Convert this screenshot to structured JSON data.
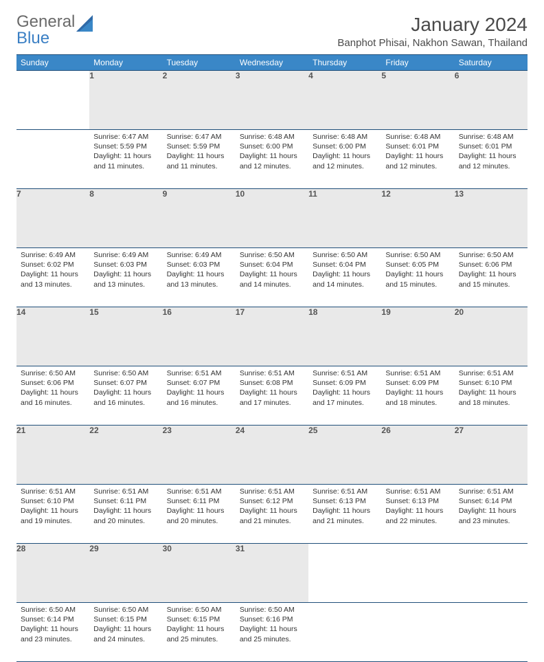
{
  "brand": {
    "name1": "General",
    "name2": "Blue"
  },
  "title": "January 2024",
  "location": "Banphot Phisai, Nakhon Sawan, Thailand",
  "colors": {
    "header_bg": "#3a87c7",
    "header_text": "#ffffff",
    "border": "#1f4e79",
    "daynum_bg": "#e9e9e9",
    "text": "#333333",
    "logo_gray": "#6a6a6a",
    "logo_blue": "#3a7fc4"
  },
  "typography": {
    "title_fontsize": 28,
    "location_fontsize": 15,
    "header_fontsize": 12,
    "daynum_fontsize": 12,
    "body_fontsize": 10.5
  },
  "days_of_week": [
    "Sunday",
    "Monday",
    "Tuesday",
    "Wednesday",
    "Thursday",
    "Friday",
    "Saturday"
  ],
  "weeks": [
    {
      "nums": [
        "",
        "1",
        "2",
        "3",
        "4",
        "5",
        "6"
      ],
      "cells": [
        null,
        {
          "sunrise": "Sunrise: 6:47 AM",
          "sunset": "Sunset: 5:59 PM",
          "daylight": "Daylight: 11 hours and 11 minutes."
        },
        {
          "sunrise": "Sunrise: 6:47 AM",
          "sunset": "Sunset: 5:59 PM",
          "daylight": "Daylight: 11 hours and 11 minutes."
        },
        {
          "sunrise": "Sunrise: 6:48 AM",
          "sunset": "Sunset: 6:00 PM",
          "daylight": "Daylight: 11 hours and 12 minutes."
        },
        {
          "sunrise": "Sunrise: 6:48 AM",
          "sunset": "Sunset: 6:00 PM",
          "daylight": "Daylight: 11 hours and 12 minutes."
        },
        {
          "sunrise": "Sunrise: 6:48 AM",
          "sunset": "Sunset: 6:01 PM",
          "daylight": "Daylight: 11 hours and 12 minutes."
        },
        {
          "sunrise": "Sunrise: 6:48 AM",
          "sunset": "Sunset: 6:01 PM",
          "daylight": "Daylight: 11 hours and 12 minutes."
        }
      ]
    },
    {
      "nums": [
        "7",
        "8",
        "9",
        "10",
        "11",
        "12",
        "13"
      ],
      "cells": [
        {
          "sunrise": "Sunrise: 6:49 AM",
          "sunset": "Sunset: 6:02 PM",
          "daylight": "Daylight: 11 hours and 13 minutes."
        },
        {
          "sunrise": "Sunrise: 6:49 AM",
          "sunset": "Sunset: 6:03 PM",
          "daylight": "Daylight: 11 hours and 13 minutes."
        },
        {
          "sunrise": "Sunrise: 6:49 AM",
          "sunset": "Sunset: 6:03 PM",
          "daylight": "Daylight: 11 hours and 13 minutes."
        },
        {
          "sunrise": "Sunrise: 6:50 AM",
          "sunset": "Sunset: 6:04 PM",
          "daylight": "Daylight: 11 hours and 14 minutes."
        },
        {
          "sunrise": "Sunrise: 6:50 AM",
          "sunset": "Sunset: 6:04 PM",
          "daylight": "Daylight: 11 hours and 14 minutes."
        },
        {
          "sunrise": "Sunrise: 6:50 AM",
          "sunset": "Sunset: 6:05 PM",
          "daylight": "Daylight: 11 hours and 15 minutes."
        },
        {
          "sunrise": "Sunrise: 6:50 AM",
          "sunset": "Sunset: 6:06 PM",
          "daylight": "Daylight: 11 hours and 15 minutes."
        }
      ]
    },
    {
      "nums": [
        "14",
        "15",
        "16",
        "17",
        "18",
        "19",
        "20"
      ],
      "cells": [
        {
          "sunrise": "Sunrise: 6:50 AM",
          "sunset": "Sunset: 6:06 PM",
          "daylight": "Daylight: 11 hours and 16 minutes."
        },
        {
          "sunrise": "Sunrise: 6:50 AM",
          "sunset": "Sunset: 6:07 PM",
          "daylight": "Daylight: 11 hours and 16 minutes."
        },
        {
          "sunrise": "Sunrise: 6:51 AM",
          "sunset": "Sunset: 6:07 PM",
          "daylight": "Daylight: 11 hours and 16 minutes."
        },
        {
          "sunrise": "Sunrise: 6:51 AM",
          "sunset": "Sunset: 6:08 PM",
          "daylight": "Daylight: 11 hours and 17 minutes."
        },
        {
          "sunrise": "Sunrise: 6:51 AM",
          "sunset": "Sunset: 6:09 PM",
          "daylight": "Daylight: 11 hours and 17 minutes."
        },
        {
          "sunrise": "Sunrise: 6:51 AM",
          "sunset": "Sunset: 6:09 PM",
          "daylight": "Daylight: 11 hours and 18 minutes."
        },
        {
          "sunrise": "Sunrise: 6:51 AM",
          "sunset": "Sunset: 6:10 PM",
          "daylight": "Daylight: 11 hours and 18 minutes."
        }
      ]
    },
    {
      "nums": [
        "21",
        "22",
        "23",
        "24",
        "25",
        "26",
        "27"
      ],
      "cells": [
        {
          "sunrise": "Sunrise: 6:51 AM",
          "sunset": "Sunset: 6:10 PM",
          "daylight": "Daylight: 11 hours and 19 minutes."
        },
        {
          "sunrise": "Sunrise: 6:51 AM",
          "sunset": "Sunset: 6:11 PM",
          "daylight": "Daylight: 11 hours and 20 minutes."
        },
        {
          "sunrise": "Sunrise: 6:51 AM",
          "sunset": "Sunset: 6:11 PM",
          "daylight": "Daylight: 11 hours and 20 minutes."
        },
        {
          "sunrise": "Sunrise: 6:51 AM",
          "sunset": "Sunset: 6:12 PM",
          "daylight": "Daylight: 11 hours and 21 minutes."
        },
        {
          "sunrise": "Sunrise: 6:51 AM",
          "sunset": "Sunset: 6:13 PM",
          "daylight": "Daylight: 11 hours and 21 minutes."
        },
        {
          "sunrise": "Sunrise: 6:51 AM",
          "sunset": "Sunset: 6:13 PM",
          "daylight": "Daylight: 11 hours and 22 minutes."
        },
        {
          "sunrise": "Sunrise: 6:51 AM",
          "sunset": "Sunset: 6:14 PM",
          "daylight": "Daylight: 11 hours and 23 minutes."
        }
      ]
    },
    {
      "nums": [
        "28",
        "29",
        "30",
        "31",
        "",
        "",
        ""
      ],
      "cells": [
        {
          "sunrise": "Sunrise: 6:50 AM",
          "sunset": "Sunset: 6:14 PM",
          "daylight": "Daylight: 11 hours and 23 minutes."
        },
        {
          "sunrise": "Sunrise: 6:50 AM",
          "sunset": "Sunset: 6:15 PM",
          "daylight": "Daylight: 11 hours and 24 minutes."
        },
        {
          "sunrise": "Sunrise: 6:50 AM",
          "sunset": "Sunset: 6:15 PM",
          "daylight": "Daylight: 11 hours and 25 minutes."
        },
        {
          "sunrise": "Sunrise: 6:50 AM",
          "sunset": "Sunset: 6:16 PM",
          "daylight": "Daylight: 11 hours and 25 minutes."
        },
        null,
        null,
        null
      ]
    }
  ]
}
